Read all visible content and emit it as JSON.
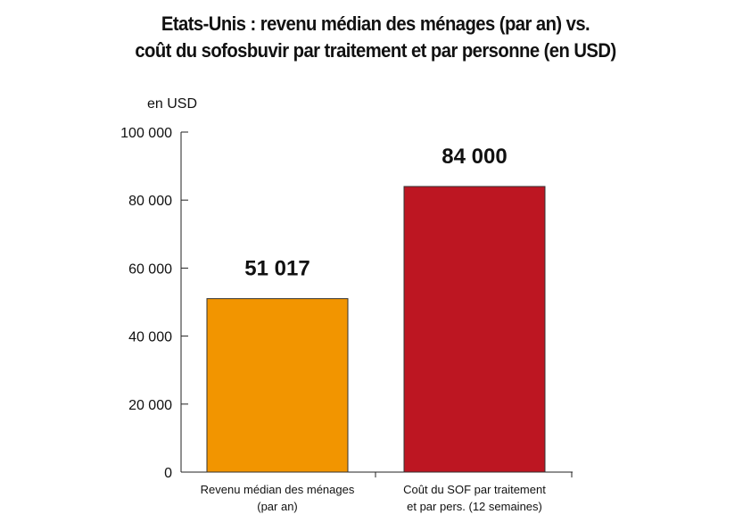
{
  "chart_data": {
    "type": "bar",
    "title": "Etats-Unis : revenu médian des ménages (par an) vs.",
    "subtitle": "coût du sofosbuvir par traitement et par personne (en USD)",
    "ylabel": "en USD",
    "ylim": [
      0,
      100000
    ],
    "yticks": [
      0,
      20000,
      40000,
      60000,
      80000,
      100000
    ],
    "ytick_labels": [
      "0",
      "20 000",
      "40 000",
      "60 000",
      "80 000",
      "100 000"
    ],
    "categories": [
      [
        "Revenu médian des ménages",
        "(par an)"
      ],
      [
        "Coût du SOF par traitement",
        "et par pers. (12 semaines)"
      ]
    ],
    "values": [
      51017,
      84000
    ],
    "value_labels": [
      "51 017",
      "84 000"
    ],
    "colors": [
      "#F29500",
      "#BD1622"
    ],
    "grid": false,
    "legend": "none"
  }
}
